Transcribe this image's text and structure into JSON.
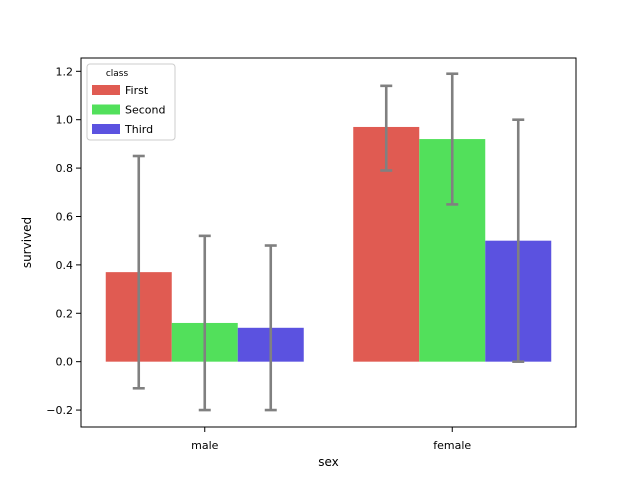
{
  "chart_data": {
    "type": "bar",
    "xlabel": "sex",
    "ylabel": "survived",
    "categories": [
      "male",
      "female"
    ],
    "ylim": [
      -0.27,
      1.255
    ],
    "yticks": [
      -0.2,
      0.0,
      0.2,
      0.4,
      0.6,
      0.8,
      1.0,
      1.2
    ],
    "ytick_labels": [
      "−0.2",
      "0.0",
      "0.2",
      "0.4",
      "0.6",
      "0.8",
      "1.0",
      "1.2"
    ],
    "grid": false,
    "legend": {
      "title": "class",
      "placement": "top-left"
    },
    "error_bar_color": "#808080",
    "series": [
      {
        "name": "First",
        "color": "#e05b52",
        "values": [
          0.37,
          0.97
        ],
        "err_low": [
          -0.11,
          0.79
        ],
        "err_high": [
          0.85,
          1.14
        ]
      },
      {
        "name": "Second",
        "color": "#52e05b",
        "values": [
          0.16,
          0.92
        ],
        "err_low": [
          -0.2,
          0.65
        ],
        "err_high": [
          0.52,
          1.19
        ]
      },
      {
        "name": "Third",
        "color": "#5b52e0",
        "values": [
          0.14,
          0.5
        ],
        "err_low": [
          -0.2,
          0.0
        ],
        "err_high": [
          0.48,
          1.0
        ]
      }
    ]
  }
}
